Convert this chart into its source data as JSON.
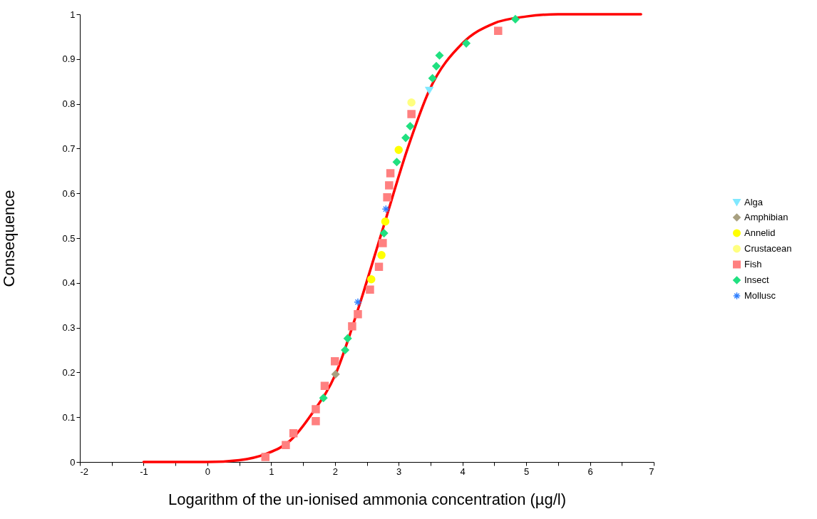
{
  "chart_data": {
    "type": "scatter",
    "xlabel": "Logarithm of the un-ionised ammonia concentration (µg/l)",
    "ylabel": "Consequence",
    "xlim": [
      -2,
      7
    ],
    "xticks": [
      -2,
      {
        "value": -1.5,
        "label": null
      },
      -1,
      {
        "value": -0.5,
        "label": null
      },
      0,
      {
        "value": 0.5,
        "label": null
      },
      1,
      {
        "value": 1.5,
        "label": null
      },
      2,
      {
        "value": 2.5,
        "label": null
      },
      3,
      {
        "value": 3.5,
        "label": null
      },
      4,
      {
        "value": 4.5,
        "label": null
      },
      5,
      {
        "value": 5.5,
        "label": null
      },
      6,
      {
        "value": 6.5,
        "label": null
      },
      7
    ],
    "ylim": [
      0,
      1
    ],
    "yticks": [
      0,
      0.1,
      0.2,
      0.3,
      0.4,
      0.5,
      0.6,
      0.7,
      0.8,
      0.9,
      1
    ],
    "grid": false,
    "legend": "right",
    "series": [
      {
        "name": "Alga",
        "color": "#80e8ff",
        "marker": "triangle",
        "x": [
          3.48
        ],
        "values": [
          0.83
        ]
      },
      {
        "name": "Amphibian",
        "color": "#a8a080",
        "marker": "diamond",
        "x": [
          2.01
        ],
        "values": [
          0.196
        ]
      },
      {
        "name": "Annelid",
        "color": "#ffff00",
        "marker": "circle",
        "x": [
          2.57,
          2.73,
          2.79,
          3.0
        ],
        "values": [
          0.408,
          0.462,
          0.537,
          0.697
        ]
      },
      {
        "name": "Crustacean",
        "color": "#ffff80",
        "marker": "circle",
        "x": [
          3.2
        ],
        "values": [
          0.803
        ]
      },
      {
        "name": "Fish",
        "color": "#ff8080",
        "marker": "square",
        "x": [
          0.91,
          1.23,
          1.35,
          1.7,
          1.7,
          1.84,
          2.0,
          2.27,
          2.36,
          2.55,
          2.69,
          2.75,
          2.82,
          2.85,
          2.87,
          3.2,
          4.56
        ],
        "values": [
          0.011,
          0.038,
          0.064,
          0.118,
          0.091,
          0.17,
          0.225,
          0.303,
          0.33,
          0.385,
          0.436,
          0.489,
          0.591,
          0.618,
          0.645,
          0.777,
          0.963
        ]
      },
      {
        "name": "Insect",
        "color": "#20e080",
        "marker": "diamond",
        "x": [
          1.82,
          2.16,
          2.2,
          2.77,
          2.97,
          3.11,
          3.18,
          3.53,
          3.59,
          3.64,
          4.06,
          4.83
        ],
        "values": [
          0.143,
          0.25,
          0.276,
          0.511,
          0.67,
          0.724,
          0.75,
          0.857,
          0.884,
          0.908,
          0.935,
          0.989
        ]
      },
      {
        "name": "Mollusc",
        "color": "#3080ff",
        "marker": "cross",
        "x": [
          2.36,
          2.8
        ],
        "values": [
          0.357,
          0.565
        ]
      },
      {
        "type": "line",
        "color": "#ff0000",
        "line_style": "solid",
        "x": [
          -1,
          0,
          0.5,
          0.92,
          1.3,
          1.64,
          2.01,
          2.36,
          2.75,
          3.14,
          3.48,
          4.0,
          4.5,
          5.0,
          5.5,
          6.8
        ],
        "values": [
          0,
          0,
          0.004,
          0.018,
          0.048,
          0.108,
          0.196,
          0.34,
          0.52,
          0.7,
          0.83,
          0.935,
          0.98,
          0.995,
          1,
          1
        ]
      }
    ]
  }
}
